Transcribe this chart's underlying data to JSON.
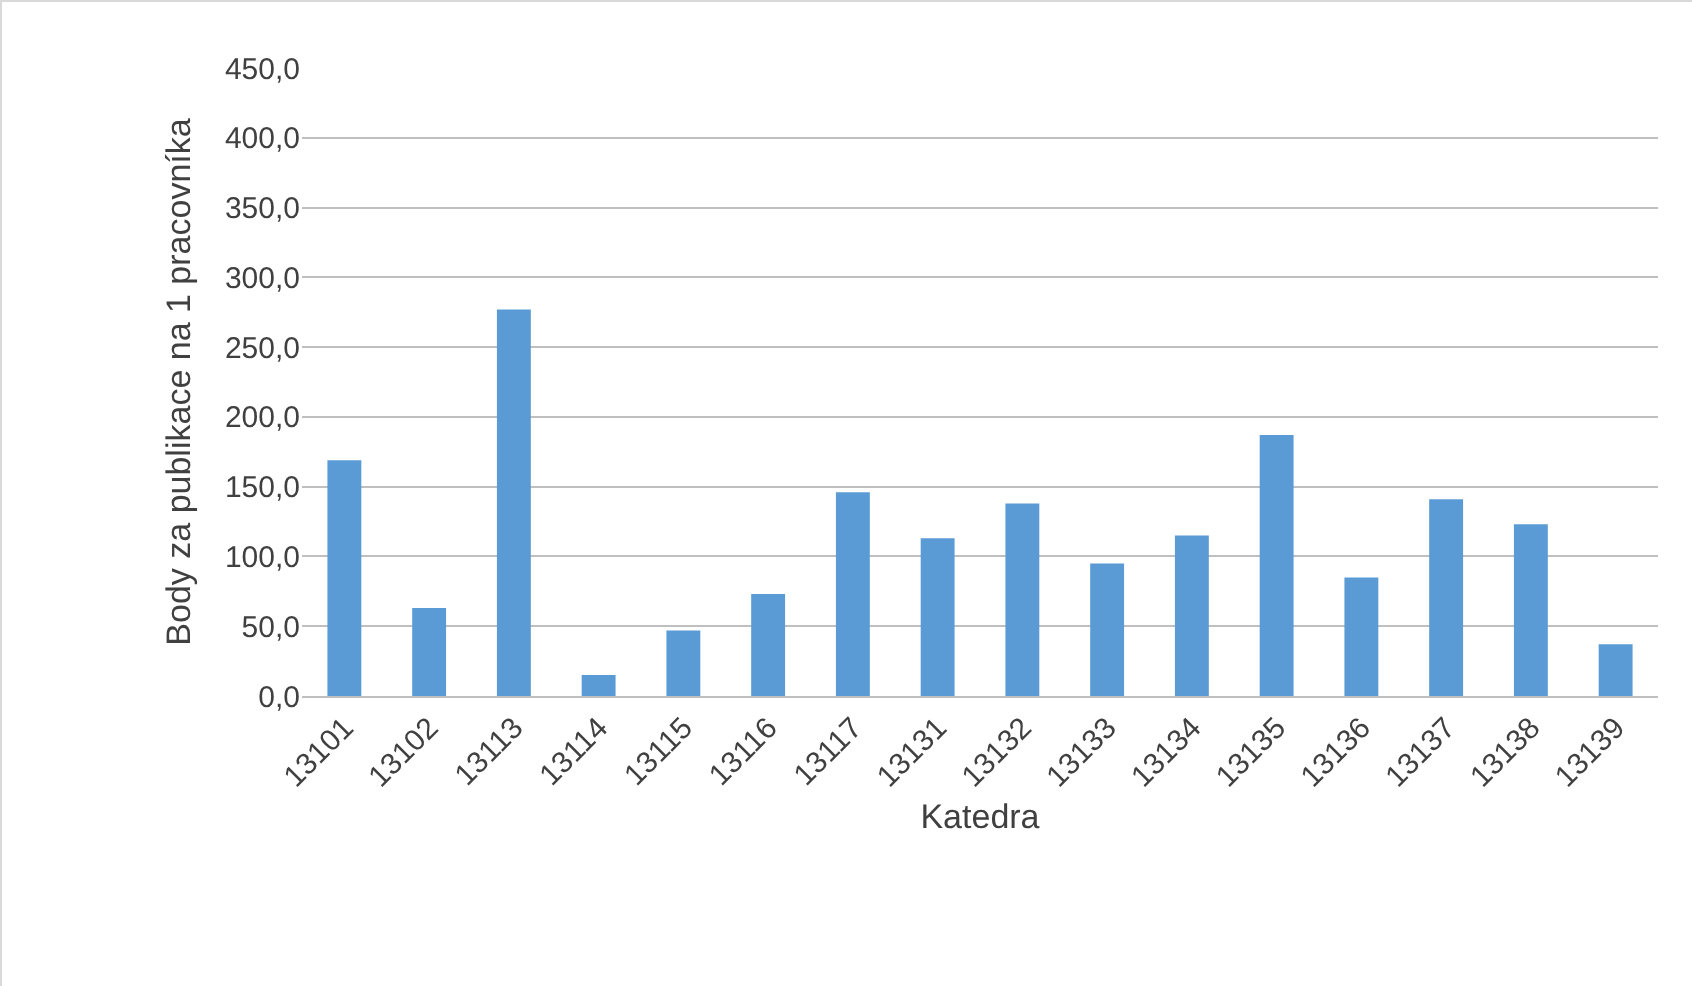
{
  "chart_data": {
    "type": "bar",
    "xlabel": "Katedra",
    "ylabel": "Body za publikace na 1 pracovníka",
    "categories": [
      "13101",
      "13102",
      "13113",
      "13114",
      "13115",
      "13116",
      "13117",
      "13131",
      "13132",
      "13133",
      "13134",
      "13135",
      "13136",
      "13137",
      "13138",
      "13139"
    ],
    "values": [
      169,
      63,
      277,
      15,
      47,
      73,
      146,
      113,
      138,
      95,
      115,
      187,
      85,
      141,
      123,
      37
    ],
    "color": "#5b9bd5",
    "ylim": [
      0,
      450
    ],
    "yticks": [
      {
        "value": 0,
        "label": "0,0"
      },
      {
        "value": 50,
        "label": "50,0"
      },
      {
        "value": 100,
        "label": "100,0"
      },
      {
        "value": 150,
        "label": "150,0"
      },
      {
        "value": 200,
        "label": "200,0"
      },
      {
        "value": 250,
        "label": "250,0"
      },
      {
        "value": 300,
        "label": "300,0"
      },
      {
        "value": 350,
        "label": "350,0"
      },
      {
        "value": 400,
        "label": "400,0"
      },
      {
        "value": 450,
        "label": "450,0"
      }
    ],
    "grid": "y"
  }
}
